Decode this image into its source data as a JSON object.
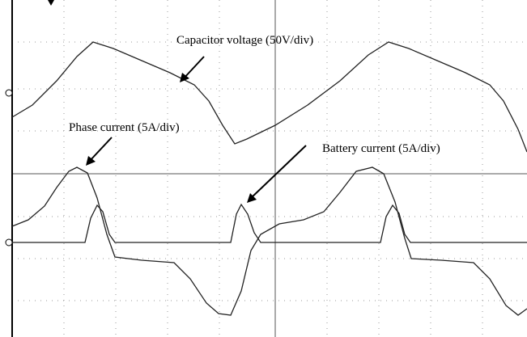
{
  "annotations": [
    "Capacitor voltage (50V/div)",
    "Phase current (5A/div)",
    "Battery current (5A/div)"
  ]
}
